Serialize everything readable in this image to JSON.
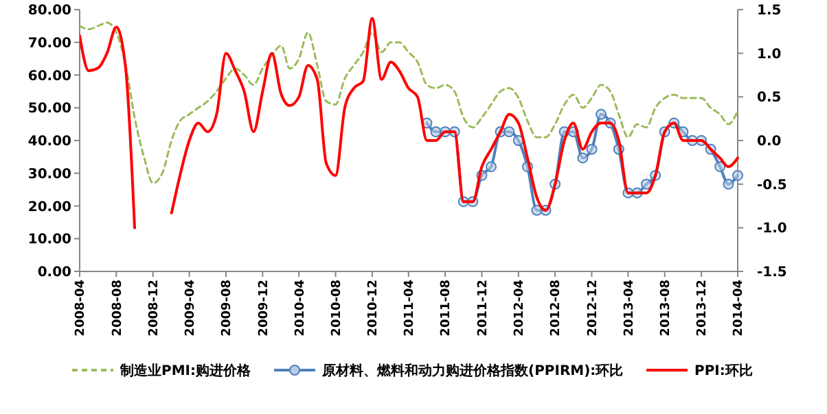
{
  "chart_data": {
    "type": "line",
    "x": [
      "2008-04",
      "2008-05",
      "2008-06",
      "2008-07",
      "2008-08",
      "2008-09",
      "2008-10",
      "2008-11",
      "2008-12",
      "2009-01",
      "2009-02",
      "2009-03",
      "2009-04",
      "2009-05",
      "2009-06",
      "2009-07",
      "2009-08",
      "2009-09",
      "2009-10",
      "2009-11",
      "2009-12",
      "2010-01",
      "2010-02",
      "2010-03",
      "2010-04",
      "2010-05",
      "2010-06",
      "2010-07",
      "2010-08",
      "2010-09",
      "2010-10",
      "2010-11",
      "2010-12",
      "2011-01",
      "2011-02",
      "2011-03",
      "2011-04",
      "2011-05",
      "2011-06",
      "2011-07",
      "2011-08",
      "2011-09",
      "2011-10",
      "2011-11",
      "2011-12",
      "2012-01",
      "2012-02",
      "2012-03",
      "2012-04",
      "2012-05",
      "2012-06",
      "2012-07",
      "2012-08",
      "2012-09",
      "2012-10",
      "2012-11",
      "2012-12",
      "2013-01",
      "2013-02",
      "2013-03",
      "2013-04",
      "2013-05",
      "2013-06",
      "2013-07",
      "2013-08",
      "2013-09",
      "2013-10",
      "2013-11",
      "2013-12",
      "2014-01",
      "2014-02",
      "2014-03",
      "2014-04"
    ],
    "xlim": [
      "2008-04",
      "2014-04"
    ],
    "xticks": [
      "2008-04",
      "2008-08",
      "2008-12",
      "2009-04",
      "2009-08",
      "2009-12",
      "2010-04",
      "2010-08",
      "2010-12",
      "2011-04",
      "2011-08",
      "2011-12",
      "2012-04",
      "2012-08",
      "2012-12",
      "2013-04",
      "2013-08",
      "2013-12",
      "2014-04"
    ],
    "ylim": [
      0,
      80
    ],
    "yticks": [
      {
        "value": 0,
        "label": "0.00"
      },
      {
        "value": 10,
        "label": "10.00"
      },
      {
        "value": 20,
        "label": "20.00"
      },
      {
        "value": 30,
        "label": "30.00"
      },
      {
        "value": 40,
        "label": "40.00"
      },
      {
        "value": 50,
        "label": "50.00"
      },
      {
        "value": 60,
        "label": "60.00"
      },
      {
        "value": 70,
        "label": "70.00"
      },
      {
        "value": 80,
        "label": "80.00"
      }
    ],
    "y2lim": [
      -1.5,
      1.5
    ],
    "y2ticks": [
      -1.5,
      {
        "value": -1,
        "label": "-1.0"
      },
      -0.5,
      {
        "value": 0,
        "label": "0.0"
      },
      0.5,
      {
        "value": 1,
        "label": "1.0"
      },
      1.5
    ],
    "legend": "bottom",
    "grid": false,
    "series": [
      {
        "name": "制造业PMI:购进价格",
        "color": "#9bbb59",
        "line_style": "dashed",
        "marker": "none",
        "values": [
          75,
          74,
          75,
          76,
          73,
          63,
          47,
          35,
          27,
          30,
          40,
          46,
          48,
          50,
          52,
          55,
          59,
          62,
          60,
          57,
          62,
          66,
          69,
          62,
          65,
          73,
          63,
          52,
          51,
          59,
          63,
          67,
          73,
          67,
          70,
          70,
          67,
          64,
          57,
          56,
          57,
          55,
          47,
          44,
          47,
          51,
          55,
          56,
          53,
          46,
          41,
          41,
          45,
          51,
          54,
          50,
          53,
          57,
          55,
          48,
          41,
          45,
          44,
          50,
          53,
          54,
          53,
          53,
          53,
          50,
          48,
          45,
          49
        ]
      },
      {
        "name": "原材料、燃料和动力购进价格指数(PPIRM):环比",
        "color": "#4f81bd",
        "axis": "y2",
        "line_style": "solid",
        "marker": "circle",
        "values": [
          null,
          null,
          null,
          null,
          null,
          null,
          null,
          null,
          null,
          null,
          null,
          null,
          null,
          null,
          null,
          null,
          null,
          null,
          null,
          null,
          null,
          null,
          null,
          null,
          null,
          null,
          null,
          null,
          null,
          null,
          null,
          null,
          null,
          null,
          null,
          null,
          null,
          null,
          0.2,
          0.1,
          0.1,
          0.1,
          -0.7,
          -0.7,
          -0.4,
          -0.3,
          0.1,
          0.1,
          0,
          -0.3,
          -0.8,
          -0.8,
          -0.5,
          0.1,
          0.1,
          -0.2,
          -0.1,
          0.3,
          0.2,
          -0.1,
          -0.6,
          -0.6,
          -0.5,
          -0.4,
          0.1,
          0.2,
          0.1,
          0,
          0,
          -0.1,
          -0.3,
          -0.5,
          -0.4
        ]
      },
      {
        "name": "PPI:环比",
        "color": "#ff0000",
        "axis": "y2",
        "line_style": "solid",
        "marker": "none",
        "values": [
          1.2,
          0.8,
          0.83,
          1.0,
          1.3,
          0.83,
          -1.0,
          null,
          null,
          null,
          -0.83,
          -0.4,
          0,
          0.2,
          0.1,
          0.3,
          1.0,
          0.8,
          0.56,
          0.1,
          0.56,
          1.0,
          0.53,
          0.4,
          0.5,
          0.86,
          0.7,
          -0.26,
          -0.4,
          0.38,
          0.6,
          0.68,
          1.4,
          0.7,
          0.9,
          0.8,
          0.6,
          0.5,
          0,
          0,
          0.1,
          0.1,
          -0.7,
          -0.7,
          -0.3,
          -0.1,
          0.1,
          0.3,
          0.2,
          -0.2,
          -0.65,
          -0.8,
          -0.5,
          0,
          0.2,
          -0.1,
          0.1,
          0.2,
          0.2,
          0,
          -0.6,
          -0.6,
          -0.6,
          -0.4,
          0.1,
          0.2,
          0,
          0,
          0,
          -0.1,
          -0.2,
          -0.3,
          -0.2
        ]
      }
    ]
  }
}
